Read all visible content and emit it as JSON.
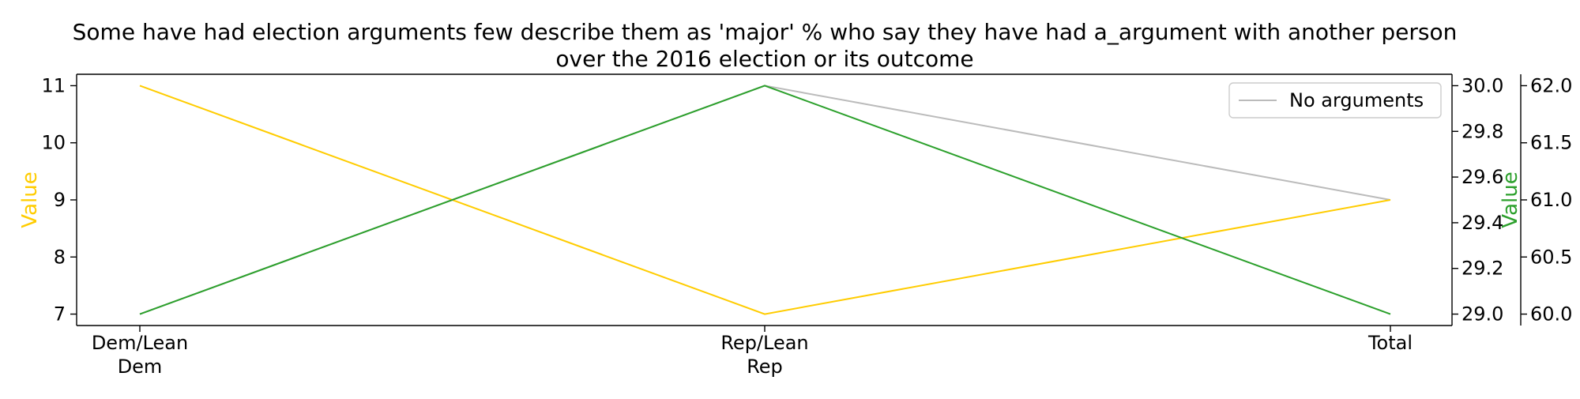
{
  "colors": {
    "series_yellow": "#ffcc00",
    "series_green": "#2ca02c",
    "series_gray": "#bbbbbb",
    "axis": "#000000",
    "legend_border": "#cccccc"
  },
  "chart_data": {
    "type": "line",
    "title_line1": "Some have had election arguments few describe them as 'major' % who say they have had a_argument with another person",
    "title_line2": "over the 2016 election or its outcome",
    "categories": [
      "Dem/Lean Dem",
      "Rep/Lean Rep",
      "Total"
    ],
    "category_lines": [
      [
        "Dem/Lean",
        "Dem"
      ],
      [
        "Rep/Lean",
        "Rep"
      ],
      [
        "Total"
      ]
    ],
    "grid": false,
    "legend_position": "top-right",
    "legend": [
      "No arguments"
    ],
    "axes": {
      "left": {
        "label": "Value",
        "ylim": [
          6.8,
          11.2
        ],
        "ticks": [
          7,
          8,
          9,
          10,
          11
        ],
        "tick_labels": [
          "7",
          "8",
          "9",
          "10",
          "11"
        ]
      },
      "right1": {
        "label": "Value",
        "ylim": [
          28.95,
          30.05
        ],
        "ticks": [
          29.0,
          29.2,
          29.4,
          29.6,
          29.8,
          30.0
        ],
        "tick_labels": [
          "29.0",
          "29.2",
          "29.4",
          "29.6",
          "29.8",
          "30.0"
        ]
      },
      "right2": {
        "ylim": [
          59.9,
          62.1
        ],
        "ticks": [
          60.0,
          60.5,
          61.0,
          61.5,
          62.0
        ],
        "tick_labels": [
          "60.0",
          "60.5",
          "61.0",
          "61.5",
          "62.0"
        ]
      }
    },
    "series": [
      {
        "axis": "left",
        "color_key": "series_yellow",
        "values": [
          11,
          7,
          9
        ]
      },
      {
        "axis": "right1",
        "color_key": "series_green",
        "values": [
          29.0,
          30.0,
          29.0
        ]
      },
      {
        "name": "No arguments",
        "axis": "right2",
        "color_key": "series_gray",
        "values": [
          60.0,
          62.0,
          61.0
        ]
      }
    ]
  }
}
